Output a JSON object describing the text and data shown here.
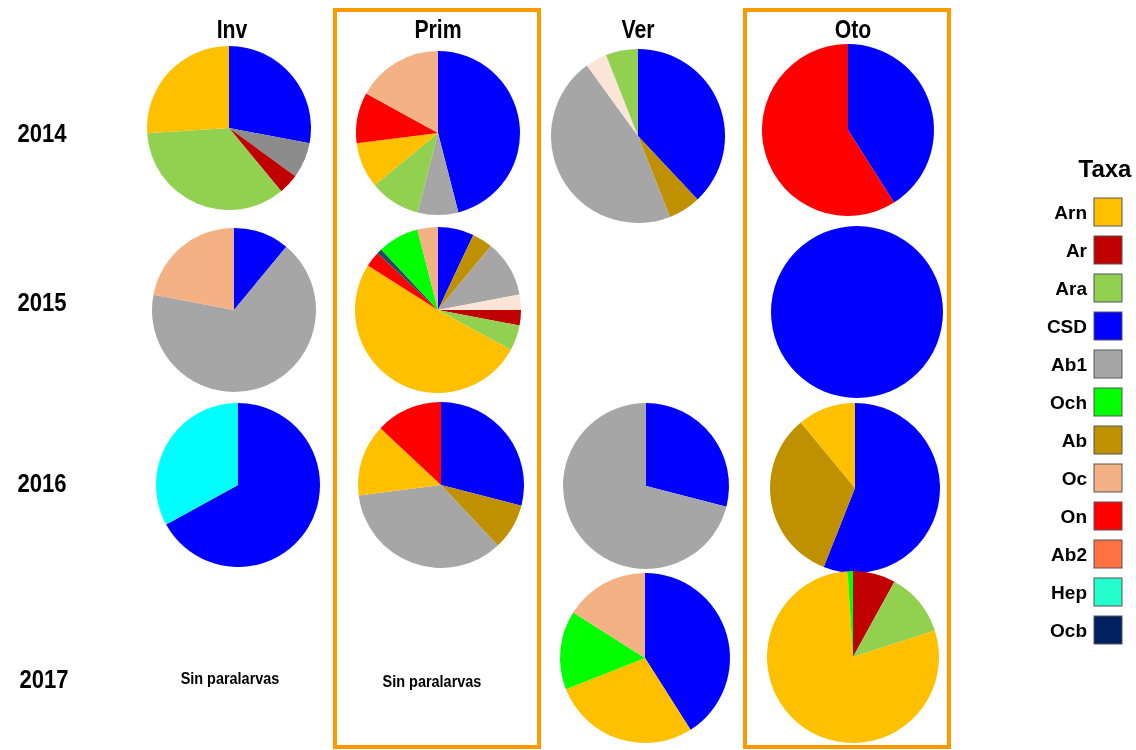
{
  "chart_data": [
    {
      "type": "other",
      "legend_title": "Taxa",
      "categories": [
        "Arn",
        "Ar",
        "Ara",
        "CSD",
        "Ab1",
        "Och",
        "Ab",
        "Oc",
        "On",
        "Ab2",
        "Hep",
        "Ocb"
      ],
      "colors": [
        "#ffc000",
        "#c00000",
        "#92d050",
        "#0000ff",
        "#a6a6a6",
        "#00ff00",
        "#bf9000",
        "#f4b183",
        "#ff0000",
        "#ff7043",
        "#22ffcc",
        "#002060"
      ],
      "annotations": [
        "Inv",
        "Prim",
        "Ver",
        "Oto",
        "2014",
        "2015",
        "2016",
        "2017",
        "Sin paralarvas",
        "Sin paralarvas"
      ]
    },
    {
      "type": "pie",
      "values": [
        28,
        7,
        4,
        35,
        26
      ],
      "colors": [
        "#0000ff",
        "#8c8c8c",
        "#c00000",
        "#92d050",
        "#ffc000"
      ]
    },
    {
      "type": "pie",
      "values": [
        46,
        8,
        10,
        9,
        10,
        17
      ],
      "colors": [
        "#0000ff",
        "#a6a6a6",
        "#92d050",
        "#ffc000",
        "#ff0000",
        "#f4b183"
      ]
    },
    {
      "type": "pie",
      "values": [
        38,
        6,
        46,
        4,
        6
      ],
      "colors": [
        "#0000ff",
        "#bf9000",
        "#a6a6a6",
        "#fbe5d6",
        "#92d050"
      ]
    },
    {
      "type": "pie",
      "values": [
        41,
        59
      ],
      "colors": [
        "#0000ff",
        "#ff0000"
      ]
    },
    {
      "type": "pie",
      "values": [
        11,
        67,
        22
      ],
      "colors": [
        "#0000ff",
        "#a6a6a6",
        "#f4b183"
      ]
    },
    {
      "type": "pie",
      "values": [
        7,
        4,
        11,
        3,
        3,
        5,
        51,
        3,
        1,
        8,
        4
      ],
      "colors": [
        "#0000ff",
        "#bf9000",
        "#a6a6a6",
        "#fbe5d6",
        "#c00000",
        "#92d050",
        "#ffc000",
        "#ff0000",
        "#1f4e5f",
        "#00ff00",
        "#f4b183"
      ]
    },
    {
      "type": "pie",
      "values": [
        100
      ],
      "colors": [
        "#0000ff"
      ]
    },
    {
      "type": "pie",
      "values": [
        67,
        33
      ],
      "colors": [
        "#0000ff",
        "#00ffff"
      ]
    },
    {
      "type": "pie",
      "values": [
        29,
        9,
        35,
        14,
        13
      ],
      "colors": [
        "#0000ff",
        "#bf9000",
        "#a6a6a6",
        "#ffc000",
        "#ff0000"
      ]
    },
    {
      "type": "pie",
      "values": [
        29,
        71
      ],
      "colors": [
        "#0000ff",
        "#a6a6a6"
      ]
    },
    {
      "type": "pie",
      "values": [
        56,
        33,
        11
      ],
      "colors": [
        "#0000ff",
        "#bf9000",
        "#ffc000"
      ]
    },
    {
      "type": "pie",
      "values": [
        41,
        28,
        15,
        16
      ],
      "colors": [
        "#0000ff",
        "#ffc000",
        "#00ff00",
        "#f4b183"
      ]
    },
    {
      "type": "pie",
      "values": [
        8,
        12,
        79,
        1
      ],
      "colors": [
        "#c00000",
        "#92d050",
        "#ffc000",
        "#00ff00"
      ]
    }
  ]
}
